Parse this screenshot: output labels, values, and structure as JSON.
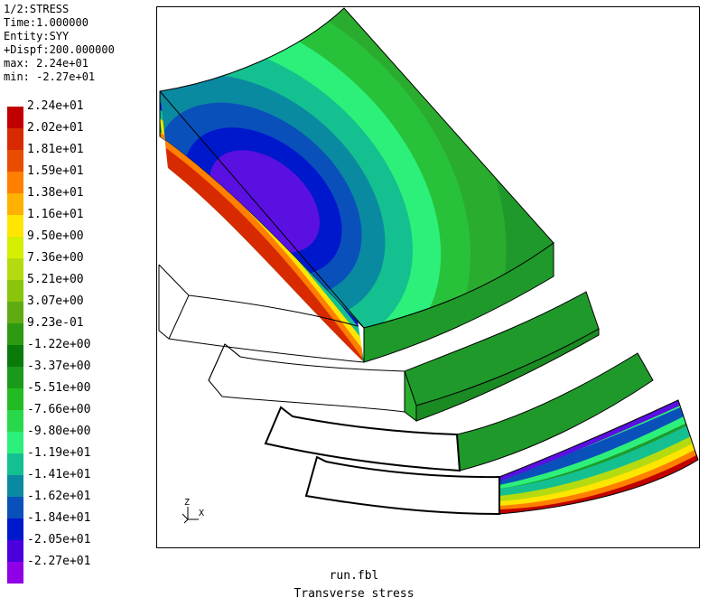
{
  "header": {
    "line1": "1/2:STRESS",
    "line2": "Time:1.000000",
    "line3": "Entity:SYY",
    "line4": "+Dispf:200.000000",
    "line5": "max: 2.24e+01",
    "line6": "min: -2.27e+01"
  },
  "legend": {
    "items": [
      {
        "label": "2.24e+01",
        "color": "#c00000"
      },
      {
        "label": "2.02e+01",
        "color": "#d82a00"
      },
      {
        "label": "1.81e+01",
        "color": "#e84d00"
      },
      {
        "label": "1.59e+01",
        "color": "#ff7f00"
      },
      {
        "label": "1.38e+01",
        "color": "#ffb000"
      },
      {
        "label": "1.16e+01",
        "color": "#ffe600"
      },
      {
        "label": "9.50e+00",
        "color": "#d6ee00"
      },
      {
        "label": "7.36e+00",
        "color": "#b5db10"
      },
      {
        "label": "5.21e+00",
        "color": "#8bc40c"
      },
      {
        "label": "3.07e+00",
        "color": "#5fac12"
      },
      {
        "label": "9.23e-01",
        "color": "#2d9a12"
      },
      {
        "label": "-1.22e+00",
        "color": "#0a7a0a"
      },
      {
        "label": "-3.37e+00",
        "color": "#1a9a1a"
      },
      {
        "label": "-5.51e+00",
        "color": "#22bb22"
      },
      {
        "label": "-7.66e+00",
        "color": "#28d84a"
      },
      {
        "label": "-9.80e+00",
        "color": "#2cf07a"
      },
      {
        "label": "-1.19e+01",
        "color": "#14c090"
      },
      {
        "label": "-1.41e+01",
        "color": "#0a8aa0"
      },
      {
        "label": "-1.62e+01",
        "color": "#0a50bb"
      },
      {
        "label": "-1.84e+01",
        "color": "#0018cc"
      },
      {
        "label": "-2.05e+01",
        "color": "#4a00dd"
      },
      {
        "label": "-2.27e+01",
        "color": "#9000e6"
      }
    ]
  },
  "axis_triad": {
    "z": "Z",
    "x": "X"
  },
  "footer": {
    "filename": "run.fbl",
    "caption": "Transverse stress"
  }
}
